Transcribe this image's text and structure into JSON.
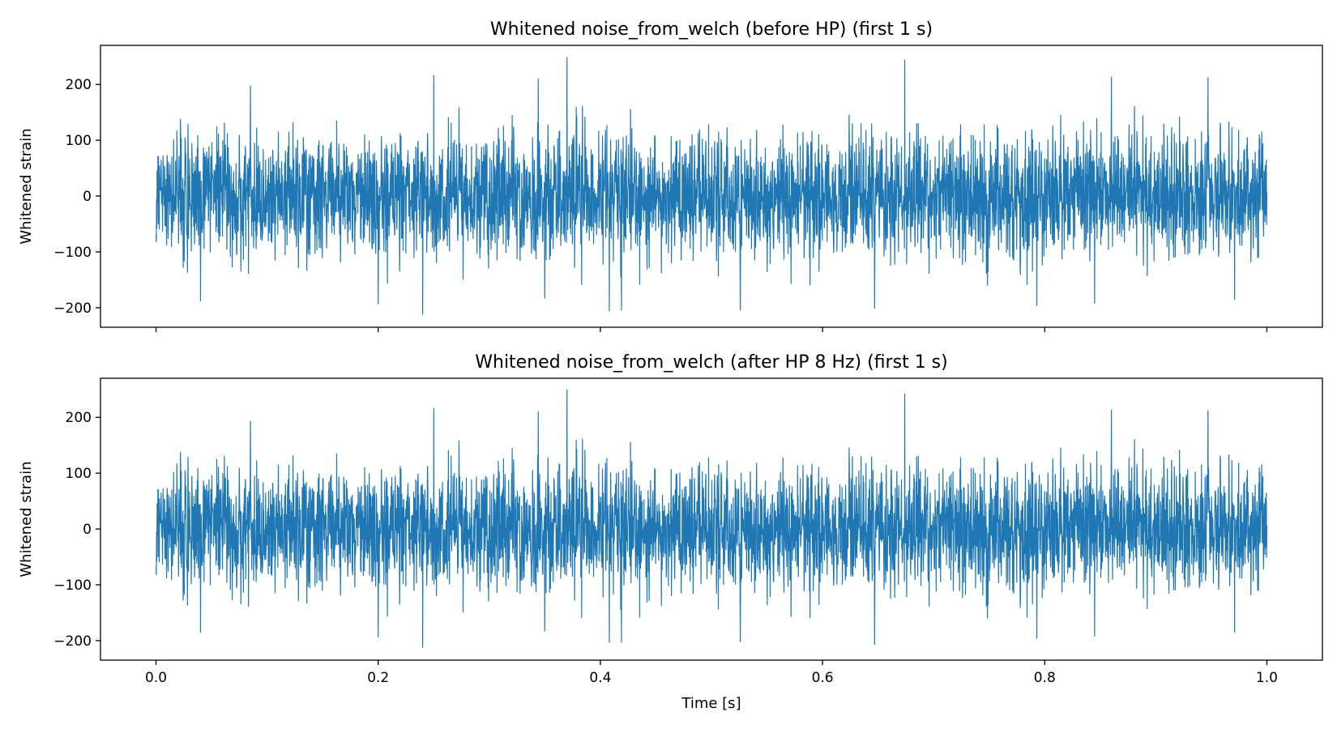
{
  "chart_data": [
    {
      "type": "line",
      "title": "Whitened noise_from_welch (before HP) (first 1 s)",
      "xlabel": "",
      "ylabel": "Whitened strain",
      "xlim": [
        -0.05,
        1.05
      ],
      "ylim": [
        -235,
        270
      ],
      "xticks": [
        0.0,
        0.2,
        0.4,
        0.6,
        0.8,
        1.0
      ],
      "xtick_labels": [],
      "yticks": [
        -200,
        -100,
        0,
        100,
        200
      ],
      "ytick_labels": [
        "−200",
        "−100",
        "0",
        "100",
        "200"
      ],
      "grid": false,
      "legend": "none",
      "line_color": "#1f77b4",
      "series": [
        {
          "t_range": [
            0.0,
            1.0
          ],
          "samples": 4096,
          "noise_sigma": 55,
          "peaks": [
            {
              "x": 0.37,
              "y": 248
            },
            {
              "x": 0.674,
              "y": 244
            },
            {
              "x": 0.25,
              "y": 216
            },
            {
              "x": 0.86,
              "y": 213
            },
            {
              "x": 0.947,
              "y": 212
            },
            {
              "x": 0.344,
              "y": 210
            },
            {
              "x": 0.085,
              "y": 197
            },
            {
              "x": 0.24,
              "y": -212
            },
            {
              "x": 0.408,
              "y": -206
            },
            {
              "x": 0.419,
              "y": -204
            },
            {
              "x": 0.526,
              "y": -204
            },
            {
              "x": 0.647,
              "y": -201
            },
            {
              "x": 0.793,
              "y": -196
            },
            {
              "x": 0.2,
              "y": -193
            },
            {
              "x": 0.845,
              "y": -192
            },
            {
              "x": 0.04,
              "y": -188
            },
            {
              "x": 0.971,
              "y": -185
            },
            {
              "x": 0.35,
              "y": -183
            }
          ]
        }
      ]
    },
    {
      "type": "line",
      "title": "Whitened noise_from_welch (after HP 8 Hz) (first 1 s)",
      "xlabel": "Time [s]",
      "ylabel": "Whitened strain",
      "xlim": [
        -0.05,
        1.05
      ],
      "ylim": [
        -235,
        270
      ],
      "xticks": [
        0.0,
        0.2,
        0.4,
        0.6,
        0.8,
        1.0
      ],
      "xtick_labels": [
        "0.0",
        "0.2",
        "0.4",
        "0.6",
        "0.8",
        "1.0"
      ],
      "yticks": [
        -200,
        -100,
        0,
        100,
        200
      ],
      "ytick_labels": [
        "−200",
        "−100",
        "0",
        "100",
        "200"
      ],
      "grid": false,
      "legend": "none",
      "line_color": "#1f77b4",
      "series": [
        {
          "t_range": [
            0.0,
            1.0
          ],
          "samples": 4096,
          "noise_sigma": 55,
          "peaks": [
            {
              "x": 0.37,
              "y": 249
            },
            {
              "x": 0.674,
              "y": 242
            },
            {
              "x": 0.25,
              "y": 216
            },
            {
              "x": 0.86,
              "y": 213
            },
            {
              "x": 0.947,
              "y": 212
            },
            {
              "x": 0.344,
              "y": 210
            },
            {
              "x": 0.085,
              "y": 193
            },
            {
              "x": 0.24,
              "y": -212
            },
            {
              "x": 0.408,
              "y": -203
            },
            {
              "x": 0.419,
              "y": -203
            },
            {
              "x": 0.526,
              "y": -202
            },
            {
              "x": 0.647,
              "y": -207
            },
            {
              "x": 0.793,
              "y": -196
            },
            {
              "x": 0.2,
              "y": -193
            },
            {
              "x": 0.845,
              "y": -192
            },
            {
              "x": 0.04,
              "y": -185
            },
            {
              "x": 0.971,
              "y": -185
            },
            {
              "x": 0.35,
              "y": -183
            }
          ]
        }
      ]
    }
  ]
}
